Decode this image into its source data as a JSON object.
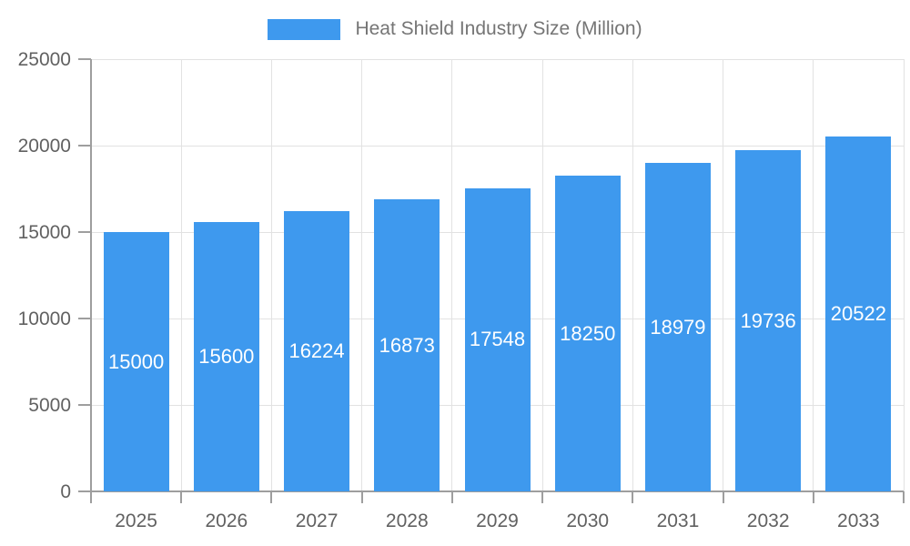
{
  "legend": {
    "label": "Heat Shield Industry Size (Million)"
  },
  "colors": {
    "bar": "#3e99ee",
    "axis_line": "#9e9e9e",
    "grid_line": "#e2e2e2",
    "tick_text": "#616161",
    "legend_text": "#757575",
    "value_label": "#ffffff",
    "background": "#ffffff"
  },
  "chart_data": {
    "type": "bar",
    "title": "Heat Shield Industry Size (Million)",
    "categories": [
      "2025",
      "2026",
      "2027",
      "2028",
      "2029",
      "2030",
      "2031",
      "2032",
      "2033"
    ],
    "values": [
      15000,
      15600,
      16224,
      16873,
      17548,
      18250,
      18979,
      19736,
      20522
    ],
    "xlabel": "",
    "ylabel": "",
    "ylim": [
      0,
      25000
    ],
    "y_ticks": [
      0,
      5000,
      10000,
      15000,
      20000,
      25000
    ],
    "grid": true,
    "legend_position": "top",
    "value_label_position": "inside-middle"
  }
}
